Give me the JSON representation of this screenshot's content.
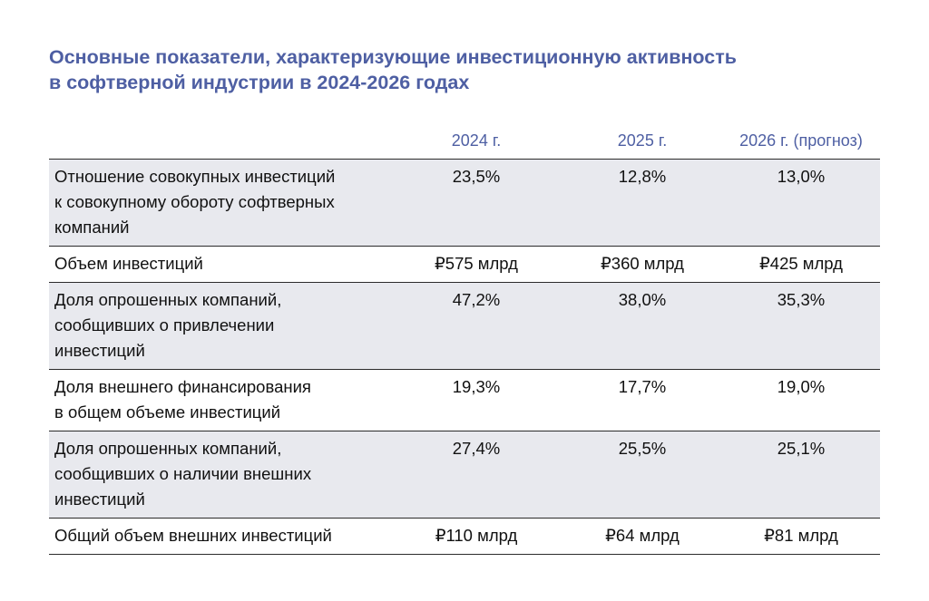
{
  "title": {
    "line1": "Основные показатели, характеризующие инвестиционную активность",
    "line2": "в софтверной индустрии в 2024-2026 годах"
  },
  "table": {
    "headers": [
      "",
      "2024 г.",
      "2025 г.",
      "2026 г. (прогноз)"
    ],
    "rows": [
      {
        "label_lines": [
          "Отношение совокупных инвестиций",
          "к совокупному обороту софтверных",
          "компаний"
        ],
        "values": [
          "23,5%",
          "12,8%",
          "13,0%"
        ],
        "shaded": true
      },
      {
        "label_lines": [
          "Объем инвестиций"
        ],
        "values": [
          "₽575 млрд",
          "₽360 млрд",
          "₽425 млрд"
        ],
        "shaded": false
      },
      {
        "label_lines": [
          "Доля опрошенных компаний,",
          "сообщивших о привлечении",
          "инвестиций"
        ],
        "values": [
          "47,2%",
          "38,0%",
          "35,3%"
        ],
        "shaded": true
      },
      {
        "label_lines": [
          "Доля внешнего финансирования",
          "в общем объеме инвестиций"
        ],
        "values": [
          "19,3%",
          "17,7%",
          "19,0%"
        ],
        "shaded": false
      },
      {
        "label_lines": [
          "Доля опрошенных компаний,",
          "сообщивших о наличии внешних",
          "инвестиций"
        ],
        "values": [
          "27,4%",
          "25,5%",
          "25,1%"
        ],
        "shaded": true
      },
      {
        "label_lines": [
          "Общий объем внешних инвестиций"
        ],
        "values": [
          "₽110 млрд",
          "₽64 млрд",
          "₽81 млрд"
        ],
        "shaded": false
      }
    ]
  },
  "colors": {
    "accent": "#4e5fa3",
    "row_shade": "#e8e9ee",
    "rule": "#2b2b2b"
  }
}
